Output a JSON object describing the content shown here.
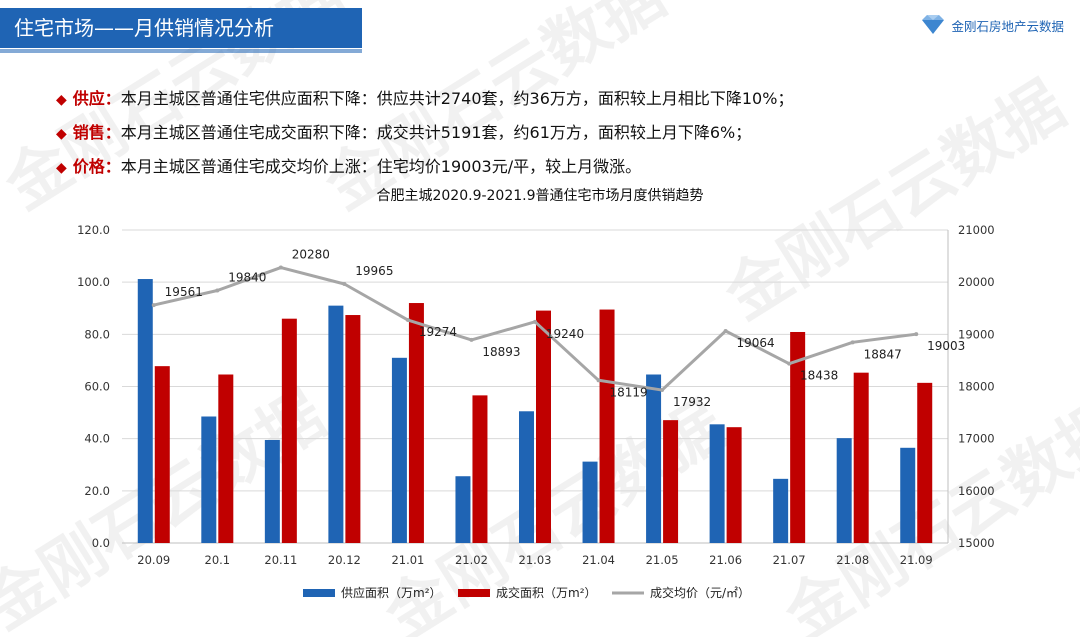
{
  "header": {
    "title": "住宅市场——月供销情况分析"
  },
  "brand": {
    "name": "金刚石房地产云数据",
    "watermark": "金刚石云数据"
  },
  "bullets": [
    {
      "tag": "供应：",
      "text": "本月主城区普通住宅供应面积下降：供应共计2740套，约36万方，面积较上月相比下降10%；"
    },
    {
      "tag": "销售：",
      "text": "本月主城区普通住宅成交面积下降：成交共计5191套，约61万方，面积较上月下降6%；"
    },
    {
      "tag": "价格：",
      "text": "本月主城区普通住宅成交均价上涨：住宅均价19003元/平，较上月微涨。"
    }
  ],
  "chart_data": {
    "type": "bar",
    "title": "合肥主城2020.9-2021.9普通住宅市场月度供销趋势",
    "categories": [
      "20.09",
      "20.1",
      "20.11",
      "20.12",
      "21.01",
      "21.02",
      "21.03",
      "21.04",
      "21.05",
      "21.06",
      "21.07",
      "21.08",
      "21.09"
    ],
    "series": [
      {
        "name": "供应面积（万m²）",
        "type": "bar",
        "axis": "left",
        "color": "#1f64b4",
        "values": [
          101.2,
          48.5,
          39.5,
          91.0,
          71.0,
          25.6,
          50.5,
          31.2,
          64.6,
          45.5,
          24.6,
          40.2,
          36.5
        ]
      },
      {
        "name": "成交面积（万m²）",
        "type": "bar",
        "axis": "left",
        "color": "#c00000",
        "values": [
          67.8,
          64.6,
          86.0,
          87.4,
          92.0,
          56.6,
          89.1,
          89.5,
          47.1,
          44.4,
          80.9,
          65.3,
          61.4
        ]
      },
      {
        "name": "成交均价（元/㎡）",
        "type": "line",
        "axis": "right",
        "color": "#a6a6a6",
        "values": [
          19561,
          19840,
          20280,
          19965,
          19274,
          18893,
          19240,
          18119,
          17932,
          19064,
          18438,
          18847,
          19003
        ]
      }
    ],
    "y_left": {
      "min": 0,
      "max": 120,
      "step": 20,
      "tick_labels": [
        "0.0",
        "20.0",
        "40.0",
        "60.0",
        "80.0",
        "100.0",
        "120.0"
      ]
    },
    "y_right": {
      "min": 15000,
      "max": 21000,
      "step": 1000,
      "tick_labels": [
        "15000",
        "16000",
        "17000",
        "18000",
        "19000",
        "20000",
        "21000"
      ]
    },
    "line_labels": [
      "19561",
      "19840",
      "20280",
      "19965",
      "19274",
      "18893",
      "19240",
      "18119",
      "17932",
      "19064",
      "18438",
      "18847",
      "19003"
    ],
    "grid": true,
    "legend_position": "bottom"
  }
}
